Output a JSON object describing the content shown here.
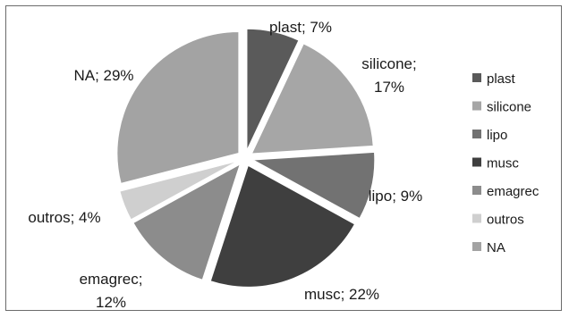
{
  "chart_data": {
    "type": "pie",
    "exploded": true,
    "slices": [
      {
        "name": "plast",
        "value": 7,
        "label_name": "plast",
        "label_value": "7%",
        "color": "#5a5a5a"
      },
      {
        "name": "silicone",
        "value": 17,
        "label_name": "silicone",
        "label_value": "17%",
        "color": "#a6a6a6"
      },
      {
        "name": "lipo",
        "value": 9,
        "label_name": "lipo",
        "label_value": "9%",
        "color": "#727272"
      },
      {
        "name": "musc",
        "value": 22,
        "label_name": "musc",
        "label_value": "22%",
        "color": "#3f3f3f"
      },
      {
        "name": "emagrec",
        "value": 12,
        "label_name": "emagrec",
        "label_value": "12%",
        "color": "#8c8c8c"
      },
      {
        "name": "outros",
        "value": 4,
        "label_name": "outros",
        "label_value": "4%",
        "color": "#cfcfcf"
      },
      {
        "name": "NA",
        "value": 29,
        "label_name": "NA",
        "label_value": "29%",
        "color": "#a3a3a3"
      }
    ],
    "legend": {
      "placement": "right",
      "entries": [
        "plast",
        "silicone",
        "lipo",
        "musc",
        "emagrec",
        "outros",
        "NA"
      ]
    }
  }
}
